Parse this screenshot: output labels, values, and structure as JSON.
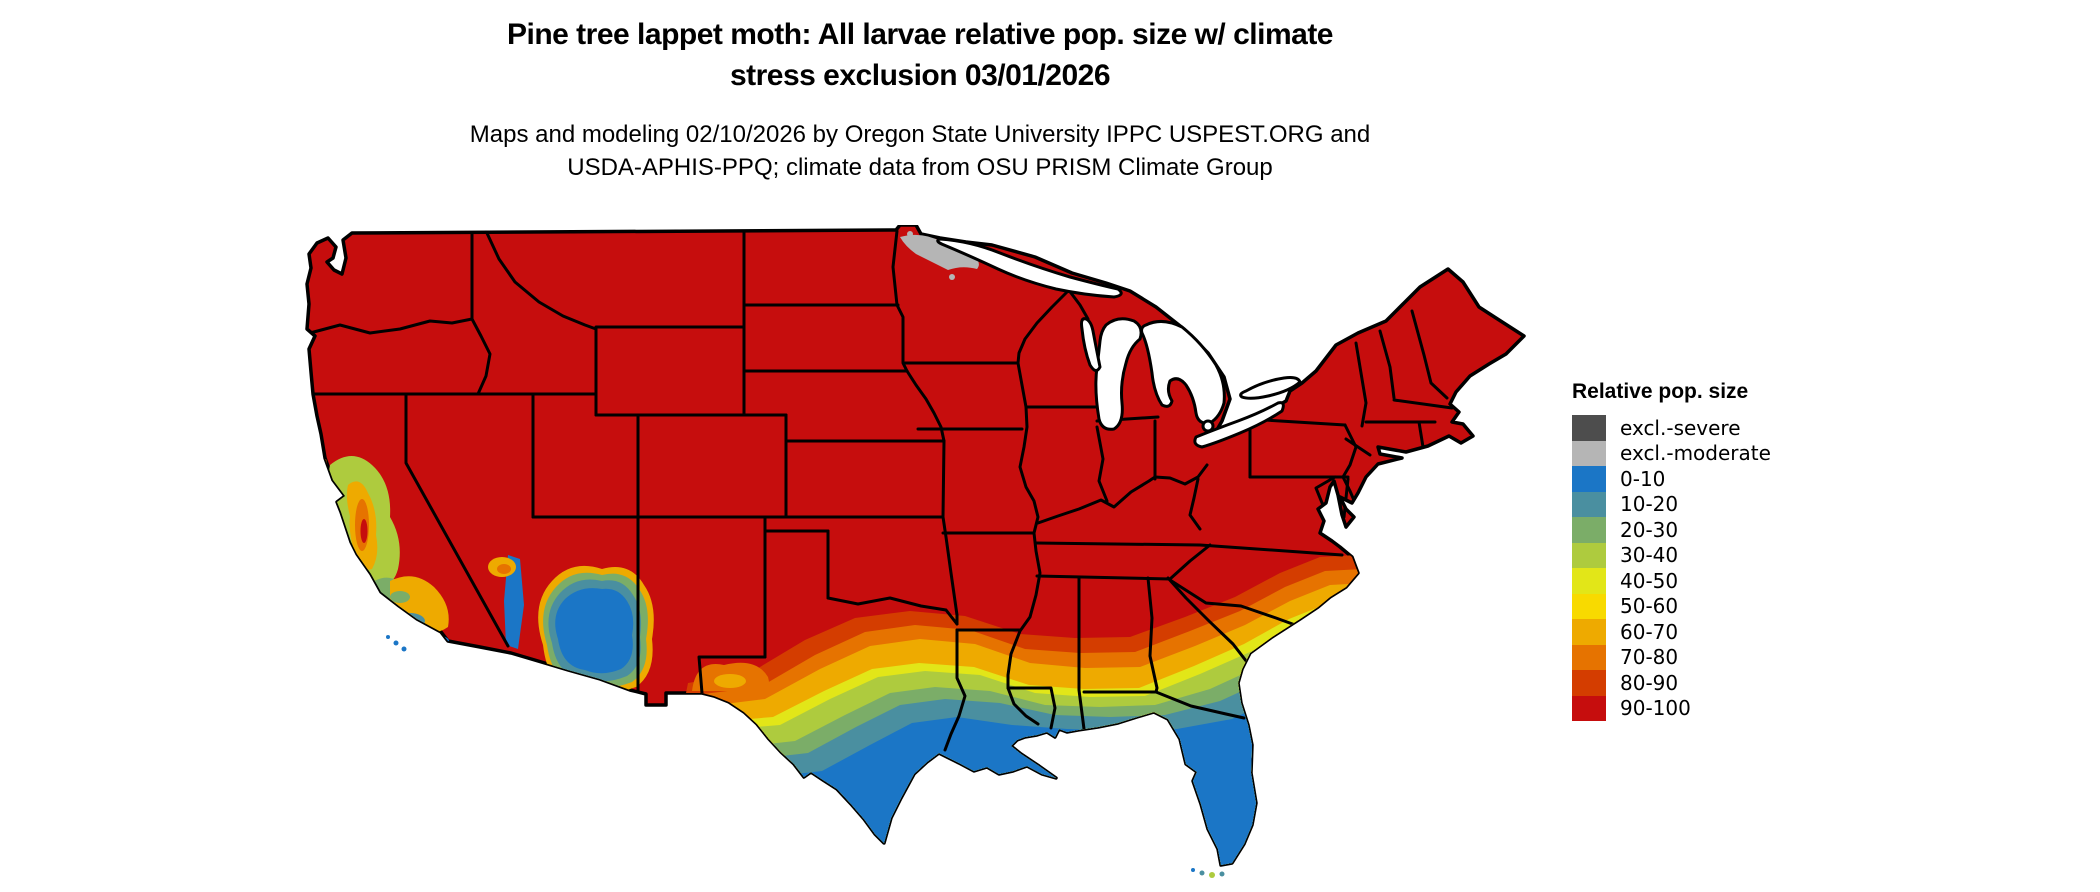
{
  "title": {
    "line1": "Pine tree lappet moth: All larvae relative pop. size w/ climate",
    "line2": "stress exclusion 03/01/2026"
  },
  "subtitle": {
    "line1": "Maps and modeling 02/10/2026 by Oregon State University IPPC USPEST.ORG and",
    "line2": "USDA-APHIS-PPQ; climate data from OSU PRISM Climate Group"
  },
  "legend": {
    "title": "Relative pop. size",
    "items": [
      {
        "label": "excl.-severe",
        "key": "excl_severe"
      },
      {
        "label": "excl.-moderate",
        "key": "excl_moderate"
      },
      {
        "label": "0-10",
        "key": "p0_10"
      },
      {
        "label": "10-20",
        "key": "p10_20"
      },
      {
        "label": "20-30",
        "key": "p20_30"
      },
      {
        "label": "30-40",
        "key": "p30_40"
      },
      {
        "label": "40-50",
        "key": "p40_50"
      },
      {
        "label": "50-60",
        "key": "p50_60"
      },
      {
        "label": "60-70",
        "key": "p60_70"
      },
      {
        "label": "70-80",
        "key": "p70_80"
      },
      {
        "label": "80-90",
        "key": "p80_90"
      },
      {
        "label": "90-100",
        "key": "p90_100"
      }
    ]
  },
  "map": {
    "name": "conus-relative-population-map",
    "palette": {
      "excl_severe": "#4d4d4d",
      "excl_moderate": "#b5b5b5",
      "p0_10": "#1b76c6",
      "p10_20": "#4a8fa0",
      "p20_30": "#7bad68",
      "p30_40": "#aecb3e",
      "p40_50": "#e2e618",
      "p50_60": "#f8da00",
      "p60_70": "#eeaa00",
      "p70_80": "#e67300",
      "p80_90": "#d43d00",
      "p90_100": "#c60d0d"
    },
    "zones_depicted": {
      "most_of_conus": "90-100",
      "northeast_minnesota": "excl.-moderate",
      "gulf_coast_and_florida_peninsula": "0-10",
      "south_texas": "0-10",
      "southern_arizona_desert": "0-10",
      "deep_south_gradient": "80-90 to 10-20 bands from north to south",
      "california_coast_and_central_valley": "mixed 20-70",
      "atlantic_coast_carolinas": "60-90 narrow coastal bands"
    }
  }
}
